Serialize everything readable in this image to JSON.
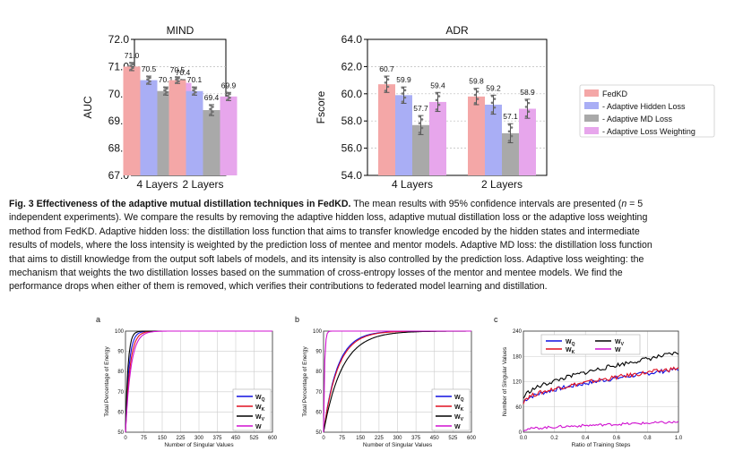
{
  "chart_data": [
    {
      "type": "bar",
      "panel": "top-left",
      "title": "MIND",
      "ylabel": "AUC",
      "xlabel": "",
      "ylim": [
        67.0,
        72.0
      ],
      "yticks": [
        "67.0",
        "68.0",
        "69.0",
        "70.0",
        "71.0",
        "72.0"
      ],
      "categories": [
        "4 Layers",
        "2 Layers"
      ],
      "series": [
        {
          "name": "FedKD",
          "color": "#f4a7a7",
          "values": [
            71.0,
            70.5
          ],
          "labels": [
            "71.0",
            "70.5"
          ],
          "ci": [
            0.15,
            0.12
          ]
        },
        {
          "name": "- Adaptive Hidden Loss",
          "color": "#a9aef5",
          "values": [
            70.5,
            70.1
          ],
          "labels": [
            "70.5",
            "70.1"
          ],
          "ci": [
            0.15,
            0.15
          ]
        },
        {
          "name": "- Adaptive MD Loss",
          "color": "#a9a9a9",
          "values": [
            70.1,
            69.4
          ],
          "labels": [
            "70.1",
            "69.4"
          ],
          "ci": [
            0.15,
            0.2
          ]
        },
        {
          "name": "- Adaptive Loss Weighting",
          "color": "#e7a6ec",
          "values": [
            70.4,
            69.9
          ],
          "labels": [
            "70.4",
            "69.9"
          ],
          "ci": [
            0.12,
            0.15
          ]
        }
      ]
    },
    {
      "type": "bar",
      "panel": "top-right",
      "title": "ADR",
      "ylabel": "Fscore",
      "xlabel": "",
      "ylim": [
        54.0,
        64.0
      ],
      "yticks": [
        "54.0",
        "56.0",
        "58.0",
        "60.0",
        "62.0",
        "64.0"
      ],
      "categories": [
        "4 Layers",
        "2 Layers"
      ],
      "series": [
        {
          "name": "FedKD",
          "color": "#f4a7a7",
          "values": [
            60.7,
            59.8
          ],
          "labels": [
            "60.7",
            "59.8"
          ],
          "ci": [
            0.6,
            0.6
          ]
        },
        {
          "name": "- Adaptive Hidden Loss",
          "color": "#a9aef5",
          "values": [
            59.9,
            59.2
          ],
          "labels": [
            "59.9",
            "59.2"
          ],
          "ci": [
            0.6,
            0.7
          ]
        },
        {
          "name": "- Adaptive MD Loss",
          "color": "#a9a9a9",
          "values": [
            57.7,
            57.1
          ],
          "labels": [
            "57.7",
            "57.1"
          ],
          "ci": [
            0.7,
            0.7
          ]
        },
        {
          "name": "- Adaptive Loss Weighting",
          "color": "#e7a6ec",
          "values": [
            59.4,
            58.9
          ],
          "labels": [
            "59.4",
            "58.9"
          ],
          "ci": [
            0.7,
            0.7
          ]
        }
      ],
      "legend": "right"
    },
    {
      "type": "line",
      "panel": "a",
      "xlabel": "Number of Singular Values",
      "ylabel": "Total Percentage of Energy",
      "xlim": [
        0,
        600
      ],
      "ylim": [
        50,
        100
      ],
      "xticks": [
        "0",
        "75",
        "150",
        "225",
        "300",
        "375",
        "450",
        "525",
        "600"
      ],
      "yticks": [
        "50",
        "60",
        "70",
        "80",
        "90",
        "100"
      ],
      "series": [
        {
          "name": "WQ",
          "label_main": "W",
          "label_sub": "Q",
          "color": "#1010e0",
          "k": 14
        },
        {
          "name": "WK",
          "label_main": "W",
          "label_sub": "K",
          "color": "#e01020",
          "k": 18
        },
        {
          "name": "WV",
          "label_main": "W",
          "label_sub": "V",
          "color": "#000000",
          "k": 10
        },
        {
          "name": "W",
          "label_main": "W",
          "label_sub": "",
          "color": "#d010d0",
          "k": 22
        }
      ]
    },
    {
      "type": "line",
      "panel": "b",
      "xlabel": "Number of Singular Values",
      "ylabel": "Total Percentage of Energy",
      "xlim": [
        0,
        600
      ],
      "ylim": [
        50,
        100
      ],
      "xticks": [
        "0",
        "75",
        "150",
        "225",
        "300",
        "375",
        "450",
        "525",
        "600"
      ],
      "yticks": [
        "50",
        "60",
        "70",
        "80",
        "90",
        "100"
      ],
      "series": [
        {
          "name": "WQ",
          "label_main": "W",
          "label_sub": "Q",
          "color": "#1010e0",
          "k": 55
        },
        {
          "name": "WK",
          "label_main": "W",
          "label_sub": "K",
          "color": "#e01020",
          "k": 58
        },
        {
          "name": "WV",
          "label_main": "W",
          "label_sub": "V",
          "color": "#000000",
          "k": 75
        },
        {
          "name": "W",
          "label_main": "W",
          "label_sub": "",
          "color": "#d010d0",
          "k": 4
        }
      ]
    },
    {
      "type": "line",
      "panel": "c",
      "xlabel": "Ratio of Training Steps",
      "ylabel": "Number of Singular Values",
      "xlim": [
        0.0,
        1.0
      ],
      "ylim": [
        0,
        240
      ],
      "xticks": [
        "0.0",
        "0.2",
        "0.4",
        "0.6",
        "0.8",
        "1.0"
      ],
      "yticks": [
        "0",
        "60",
        "120",
        "180",
        "240"
      ],
      "series": [
        {
          "name": "WQ",
          "label_main": "W",
          "label_sub": "Q",
          "color": "#1010e0",
          "start": 70,
          "end": 150
        },
        {
          "name": "WK",
          "label_main": "W",
          "label_sub": "K",
          "color": "#e01020",
          "start": 72,
          "end": 152
        },
        {
          "name": "WV",
          "label_main": "W",
          "label_sub": "V",
          "color": "#000000",
          "start": 80,
          "end": 188
        },
        {
          "name": "W",
          "label_main": "W",
          "label_sub": "",
          "color": "#d010d0",
          "start": 5,
          "end": 24
        }
      ]
    }
  ],
  "caption": {
    "lines": [
      [
        "Fig. 3 Effectiveness of the adaptive mutual distillation techniques in FedKD.",
        " The mean results with 95% confidence intervals are presented (",
        "n",
        " = 5"
      ],
      [
        "independent experiments). We compare the results by removing the adaptive hidden loss, adaptive mutual distillation loss or the adaptive loss weighting"
      ],
      [
        "method from FedKD. Adaptive hidden loss: the distillation loss function that aims to transfer knowledge encoded by the hidden states and intermediate"
      ],
      [
        "results of models, where the loss intensity is weighted by the prediction loss of mentee and mentor models. Adaptive MD loss: the distillation loss function"
      ],
      [
        "that aims to distill knowledge from the output soft labels of models, and its intensity is also controlled by the prediction loss. Adaptive loss weighting: the"
      ],
      [
        "mechanism that weights the two distillation losses based on the summation of cross-entropy losses of the mentor and mentee models. We find the"
      ],
      [
        "performance drops when either of them is removed, which verifies their contributions to federated model learning and distillation."
      ]
    ]
  },
  "panel_labels": {
    "a": "a",
    "b": "b",
    "c": "c"
  }
}
